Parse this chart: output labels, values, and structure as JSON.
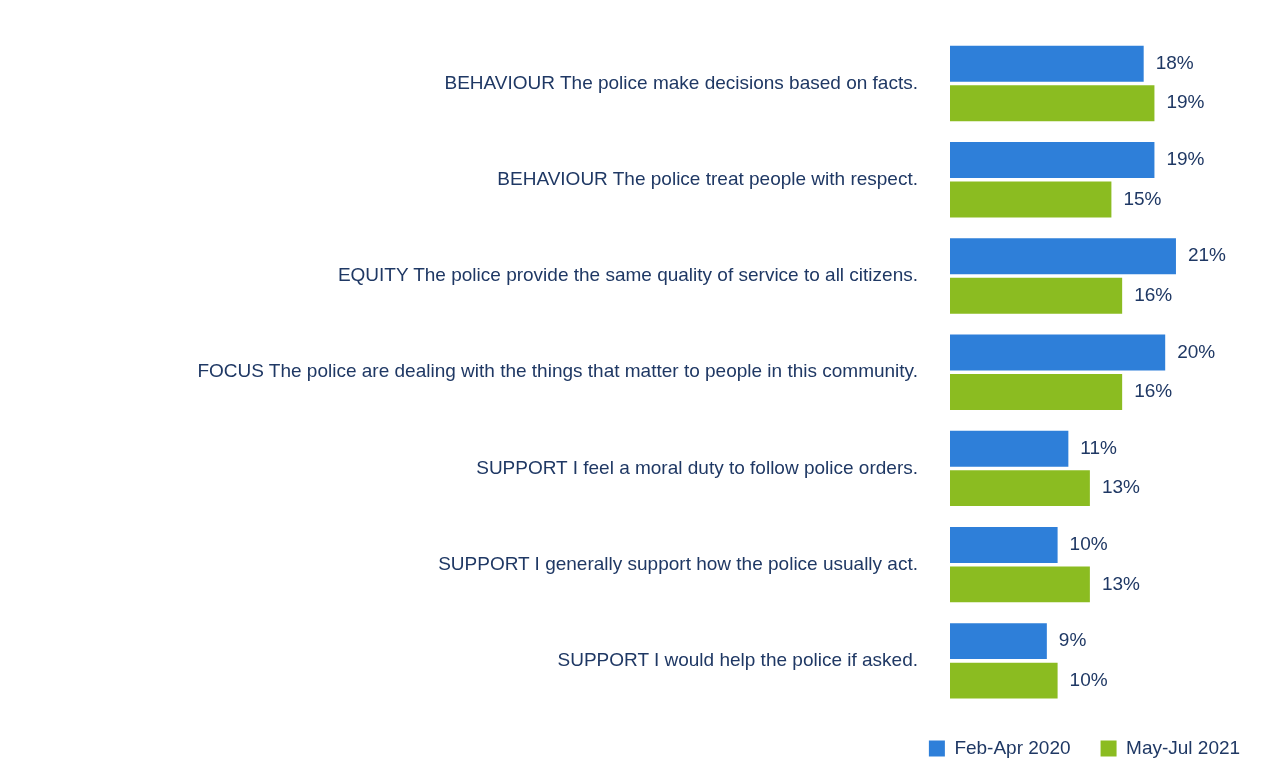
{
  "chart_data": {
    "type": "bar",
    "orientation": "horizontal",
    "categories": [
      "BEHAVIOUR The police make decisions based on facts.",
      "BEHAVIOUR The police treat people with respect.",
      "EQUITY The police provide the same quality of service to all citizens.",
      "FOCUS The police are dealing with the things that matter to people in this community.",
      "SUPPORT I feel a moral duty to follow police orders.",
      "SUPPORT I generally support how the police usually act.",
      "SUPPORT I would help the police if asked."
    ],
    "series": [
      {
        "name": "Feb-Apr 2020",
        "color": "#2e7fd9",
        "values": [
          18,
          19,
          21,
          20,
          11,
          10,
          9
        ],
        "value_labels": [
          "18%",
          "19%",
          "21%",
          "20%",
          "11%",
          "10%",
          "9%"
        ]
      },
      {
        "name": "May-Jul 2021",
        "color": "#8bbc21",
        "values": [
          19,
          15,
          16,
          16,
          13,
          13,
          10
        ],
        "value_labels": [
          "19%",
          "15%",
          "16%",
          "16%",
          "13%",
          "13%",
          "10%"
        ]
      }
    ],
    "legend": "bottom"
  }
}
